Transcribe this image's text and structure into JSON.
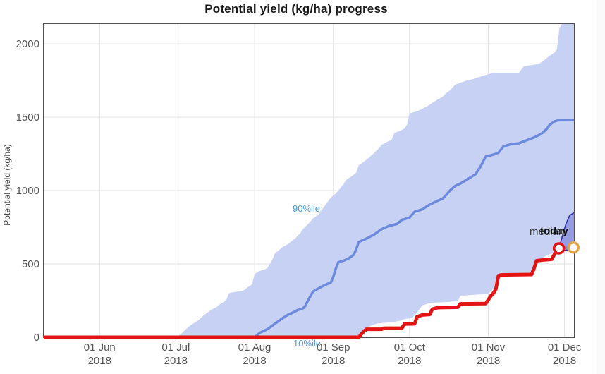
{
  "title": "Potential yield (kg/ha) progress",
  "y_axis": {
    "label": "Potential yield (kg/ha)",
    "ticks": [
      0,
      500,
      1000,
      1500,
      2000
    ]
  },
  "x_axis": {
    "ticks": [
      {
        "t": 22,
        "line1": "01 Jun",
        "line2": "2018"
      },
      {
        "t": 52,
        "line1": "01 Jul",
        "line2": "2018"
      },
      {
        "t": 83,
        "line1": "01 Aug",
        "line2": "2018"
      },
      {
        "t": 114,
        "line1": "01 Sep",
        "line2": "2018"
      },
      {
        "t": 144,
        "line1": "01 Oct",
        "line2": "2018"
      },
      {
        "t": 175,
        "line1": "01 Nov",
        "line2": "2018"
      },
      {
        "t": 205,
        "line1": "01 Dec",
        "line2": "2018"
      }
    ]
  },
  "annotations": {
    "p90": "90%ile",
    "p10": "10%ile",
    "median": "median",
    "today": "today"
  },
  "colors": {
    "band_fill": "#c7d1f3",
    "median_line": "#6b89dd",
    "actual_line": "#e21414",
    "today_marker": "#e2a44a",
    "cone_fill": "rgba(70,70,200,0.38)",
    "cone_stroke": "#2b2ba8",
    "grid": "#e2e2e2",
    "plot_border": "#4f4f4f",
    "tick_text": "#555555",
    "axis_title_text": "#444444",
    "pct_label": "#4a9ad2",
    "connector_line": "#5f7fd8",
    "marker_fill": "#ffffff"
  },
  "chart_data": {
    "type": "line",
    "title": "Potential yield (kg/ha) progress",
    "xlabel": "",
    "ylabel": "Potential yield (kg/ha)",
    "x_unit": "days since 2018-05-10",
    "xlim": [
      0,
      209
    ],
    "ylim": [
      0,
      2140
    ],
    "grid": true,
    "legend_position": "none",
    "series": [
      {
        "name": "90th percentile (band upper)",
        "points": [
          [
            0,
            0
          ],
          [
            52,
            0
          ],
          [
            54,
            20
          ],
          [
            55,
            40
          ],
          [
            57,
            70
          ],
          [
            58,
            85
          ],
          [
            60,
            105
          ],
          [
            61,
            118
          ],
          [
            63,
            150
          ],
          [
            64,
            162
          ],
          [
            66,
            188
          ],
          [
            68,
            205
          ],
          [
            69,
            222
          ],
          [
            71,
            242
          ],
          [
            72,
            262
          ],
          [
            73,
            302
          ],
          [
            75,
            308
          ],
          [
            78,
            316
          ],
          [
            79,
            322
          ],
          [
            80,
            338
          ],
          [
            82,
            360
          ],
          [
            83,
            432
          ],
          [
            85,
            452
          ],
          [
            87,
            462
          ],
          [
            88,
            472
          ],
          [
            90,
            530
          ],
          [
            91,
            572
          ],
          [
            93,
            600
          ],
          [
            94,
            614
          ],
          [
            96,
            635
          ],
          [
            97,
            648
          ],
          [
            99,
            674
          ],
          [
            101,
            710
          ],
          [
            102,
            737
          ],
          [
            104,
            770
          ],
          [
            106,
            810
          ],
          [
            108,
            835
          ],
          [
            109,
            857
          ],
          [
            111,
            905
          ],
          [
            113,
            952
          ],
          [
            115,
            980
          ],
          [
            116,
            1002
          ],
          [
            118,
            1042
          ],
          [
            119,
            1072
          ],
          [
            121,
            1095
          ],
          [
            123,
            1122
          ],
          [
            124,
            1172
          ],
          [
            126,
            1196
          ],
          [
            128,
            1224
          ],
          [
            130,
            1255
          ],
          [
            132,
            1290
          ],
          [
            133,
            1312
          ],
          [
            135,
            1330
          ],
          [
            137,
            1347
          ],
          [
            138,
            1392
          ],
          [
            140,
            1405
          ],
          [
            142,
            1422
          ],
          [
            143,
            1450
          ],
          [
            144,
            1527
          ],
          [
            147,
            1540
          ],
          [
            149,
            1557
          ],
          [
            151,
            1575
          ],
          [
            153,
            1597
          ],
          [
            155,
            1620
          ],
          [
            157,
            1640
          ],
          [
            158,
            1657
          ],
          [
            160,
            1685
          ],
          [
            162,
            1722
          ],
          [
            164,
            1735
          ],
          [
            166,
            1747
          ],
          [
            169,
            1760
          ],
          [
            171,
            1772
          ],
          [
            174,
            1788
          ],
          [
            177,
            1802
          ],
          [
            187,
            1802
          ],
          [
            188,
            1825
          ],
          [
            189,
            1847
          ],
          [
            192,
            1855
          ],
          [
            195,
            1864
          ],
          [
            197,
            1888
          ],
          [
            199,
            1917
          ],
          [
            201,
            1940
          ],
          [
            202,
            1962
          ],
          [
            203,
            2105
          ],
          [
            204,
            2140
          ],
          [
            209,
            2140
          ]
        ]
      },
      {
        "name": "10th percentile (band lower)",
        "points": [
          [
            0,
            0
          ],
          [
            124,
            0
          ],
          [
            126,
            30
          ],
          [
            127,
            62
          ],
          [
            129,
            80
          ],
          [
            131,
            93
          ],
          [
            134,
            98
          ],
          [
            137,
            102
          ],
          [
            140,
            112
          ],
          [
            142,
            124
          ],
          [
            145,
            132
          ],
          [
            147,
            170
          ],
          [
            149,
            217
          ],
          [
            151,
            228
          ],
          [
            152,
            234
          ],
          [
            160,
            242
          ],
          [
            163,
            250
          ],
          [
            164,
            282
          ],
          [
            168,
            288
          ],
          [
            172,
            292
          ],
          [
            175,
            297
          ],
          [
            176,
            315
          ],
          [
            177,
            332
          ],
          [
            178,
            396
          ],
          [
            179,
            415
          ],
          [
            180,
            426
          ],
          [
            190,
            430
          ],
          [
            192,
            434
          ],
          [
            193,
            480
          ],
          [
            195,
            522
          ],
          [
            197,
            548
          ],
          [
            198,
            558
          ],
          [
            200,
            572
          ],
          [
            202,
            587
          ],
          [
            205,
            600
          ],
          [
            209,
            613
          ]
        ]
      },
      {
        "name": "median",
        "points": [
          [
            0,
            0
          ],
          [
            83,
            0
          ],
          [
            85,
            30
          ],
          [
            88,
            55
          ],
          [
            90,
            80
          ],
          [
            92,
            105
          ],
          [
            94,
            130
          ],
          [
            96,
            152
          ],
          [
            98,
            168
          ],
          [
            100,
            186
          ],
          [
            102,
            196
          ],
          [
            103,
            215
          ],
          [
            104,
            250
          ],
          [
            106,
            312
          ],
          [
            108,
            332
          ],
          [
            110,
            350
          ],
          [
            112,
            366
          ],
          [
            113,
            372
          ],
          [
            114,
            412
          ],
          [
            115,
            470
          ],
          [
            116,
            512
          ],
          [
            118,
            522
          ],
          [
            120,
            537
          ],
          [
            122,
            562
          ],
          [
            123,
            600
          ],
          [
            124,
            650
          ],
          [
            127,
            673
          ],
          [
            130,
            700
          ],
          [
            133,
            737
          ],
          [
            136,
            760
          ],
          [
            139,
            772
          ],
          [
            141,
            800
          ],
          [
            144,
            816
          ],
          [
            146,
            856
          ],
          [
            149,
            872
          ],
          [
            152,
            905
          ],
          [
            155,
            930
          ],
          [
            157,
            945
          ],
          [
            158,
            962
          ],
          [
            160,
            1002
          ],
          [
            162,
            1032
          ],
          [
            164,
            1048
          ],
          [
            166,
            1068
          ],
          [
            168,
            1090
          ],
          [
            170,
            1112
          ],
          [
            172,
            1165
          ],
          [
            174,
            1232
          ],
          [
            177,
            1245
          ],
          [
            179,
            1258
          ],
          [
            181,
            1302
          ],
          [
            184,
            1316
          ],
          [
            187,
            1322
          ],
          [
            190,
            1342
          ],
          [
            193,
            1362
          ],
          [
            196,
            1388
          ],
          [
            198,
            1420
          ],
          [
            199,
            1445
          ],
          [
            201,
            1472
          ],
          [
            203,
            1480
          ],
          [
            209,
            1481
          ]
        ]
      },
      {
        "name": "actual yield progress",
        "points": [
          [
            0,
            0
          ],
          [
            124,
            0
          ],
          [
            125,
            22
          ],
          [
            126,
            40
          ],
          [
            127,
            55
          ],
          [
            133,
            55
          ],
          [
            134,
            62
          ],
          [
            141,
            62
          ],
          [
            142,
            90
          ],
          [
            146,
            92
          ],
          [
            147,
            140
          ],
          [
            149,
            152
          ],
          [
            152,
            156
          ],
          [
            153,
            192
          ],
          [
            155,
            202
          ],
          [
            163,
            205
          ],
          [
            164,
            228
          ],
          [
            174,
            230
          ],
          [
            176,
            282
          ],
          [
            177,
            300
          ],
          [
            178,
            330
          ],
          [
            179,
            420
          ],
          [
            180,
            425
          ],
          [
            192,
            428
          ],
          [
            193,
            470
          ],
          [
            194,
            522
          ],
          [
            197,
            528
          ],
          [
            200,
            532
          ],
          [
            201,
            565
          ],
          [
            202.8,
            606
          ]
        ]
      },
      {
        "name": "forecast cone (today)",
        "points": [
          [
            202.8,
            606
          ],
          [
            204,
            680
          ],
          [
            205.5,
            770
          ],
          [
            207,
            830
          ],
          [
            209,
            852
          ],
          [
            209,
            615
          ],
          [
            207,
            597
          ],
          [
            205,
            593
          ],
          [
            202.8,
            606
          ]
        ]
      },
      {
        "name": "actual-to-today connector",
        "points": [
          [
            202.8,
            606
          ],
          [
            208.5,
            612
          ]
        ]
      }
    ],
    "markers": [
      {
        "name": "actual-end-marker",
        "t": 202.8,
        "v": 606,
        "stroke": "#e21414"
      },
      {
        "name": "today-marker",
        "t": 208.5,
        "v": 612,
        "stroke": "#e2a44a"
      }
    ]
  }
}
